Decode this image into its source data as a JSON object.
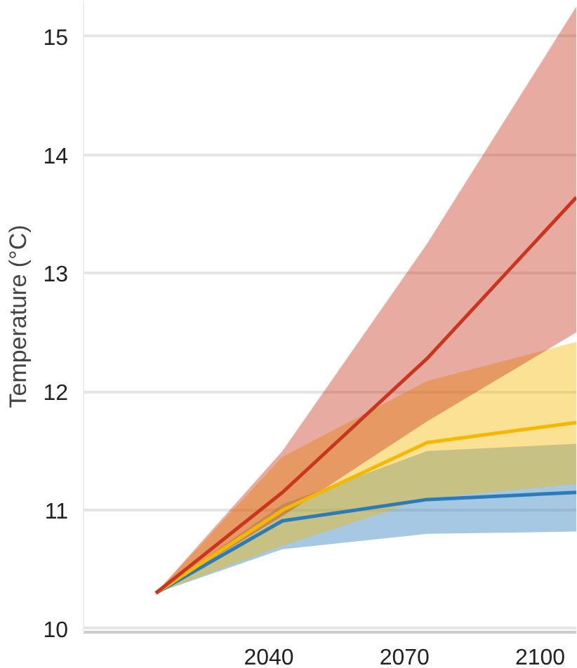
{
  "chart_data": {
    "type": "line",
    "ylabel": "Temperature (°C)",
    "x": [
      2015,
      2043,
      2075,
      2108
    ],
    "xlim": [
      1999,
      2108
    ],
    "xticks": [
      2040,
      2070,
      2100
    ],
    "ylim": [
      9.97,
      15.3
    ],
    "yticks": [
      10,
      11,
      12,
      13,
      14,
      15
    ],
    "grid": "y",
    "series": [
      {
        "color": "#2b7bb9",
        "values": [
          10.3,
          10.91,
          11.09,
          11.15
        ],
        "lower": [
          10.3,
          10.67,
          10.8,
          10.82
        ],
        "upper": [
          10.3,
          11.05,
          11.5,
          11.56
        ]
      },
      {
        "color": "#f5b800",
        "values": [
          10.3,
          11.0,
          11.57,
          11.74
        ],
        "lower": [
          10.3,
          10.7,
          11.1,
          11.22
        ],
        "upper": [
          10.3,
          11.45,
          12.09,
          12.42
        ]
      },
      {
        "color": "#c8361f",
        "values": [
          10.3,
          11.15,
          12.28,
          13.64
        ],
        "lower": [
          10.3,
          10.95,
          11.75,
          12.5
        ],
        "upper": [
          10.3,
          11.5,
          13.25,
          15.25
        ]
      }
    ]
  }
}
